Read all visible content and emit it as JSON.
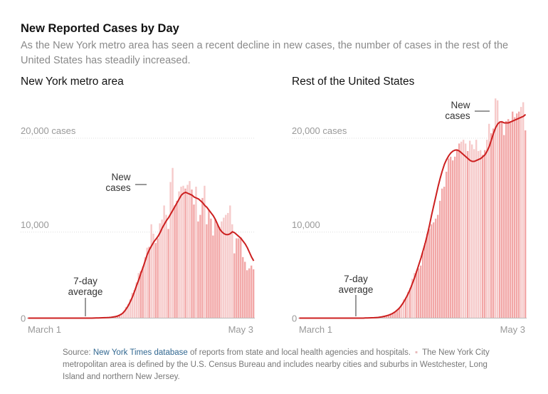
{
  "title": "New Reported Cases by Day",
  "subtitle": "As the New York metro area has seen a recent decline in new cases, the number of cases in the rest of the United States has steadily increased.",
  "colors": {
    "bar": "#f2a7a7",
    "bar_light": "#f6caca",
    "line": "#cc1f1f",
    "grid": "#dddddd",
    "axis_text": "#999999",
    "annot": "#333333"
  },
  "annotations": {
    "new_cases": [
      "New",
      "cases"
    ],
    "avg_label": [
      "7-day",
      "average"
    ]
  },
  "source": {
    "prefix": "Source: ",
    "link": "New York Times database",
    "rest": " of reports from state and local health agencies and hospitals.",
    "note": "The New York City metropolitan area is defined by the U.S. Census Bureau and includes nearby cities and suburbs in Westchester, Long Island and northern New Jersey."
  },
  "chart_data": [
    {
      "type": "bar",
      "title": "New York metro area",
      "xlabel": "",
      "ylabel": "",
      "ylim": [
        0,
        24000
      ],
      "y_ticks": [
        {
          "value": 0,
          "label": "0"
        },
        {
          "value": 10000,
          "label": "10,000"
        },
        {
          "value": 20000,
          "label": "20,000 cases"
        }
      ],
      "x_labels": [
        "March 1",
        "May 3"
      ],
      "start_date": "March 1",
      "series": [
        {
          "name": "New cases",
          "values": [
            0,
            0,
            0,
            0,
            0,
            0,
            0,
            0,
            0,
            0,
            0,
            0,
            0,
            0,
            0,
            0,
            0,
            0,
            0,
            0,
            0,
            0,
            0,
            0,
            0,
            0,
            0,
            0,
            0,
            0,
            0,
            5,
            10,
            10,
            15,
            30,
            40,
            50,
            60,
            80,
            100,
            150,
            200,
            300,
            500,
            800,
            1200,
            1500,
            2000,
            2700,
            3000,
            3800,
            4800,
            5000,
            5500,
            6500,
            7500,
            7600,
            10000,
            9000,
            8000,
            8500,
            10100,
            10500,
            12000,
            11000,
            9500,
            14500,
            16000,
            12000,
            12500,
            13500,
            14000,
            14100,
            13800,
            14200,
            14600,
            13700,
            12100,
            14000,
            10300,
            11000,
            12800,
            14100,
            10000,
            11500,
            10600,
            8800,
            10500,
            10000,
            9700,
            10300,
            10700,
            11000,
            11200,
            12000,
            10000,
            6900,
            8500,
            8500,
            8600,
            6500,
            6000,
            5100,
            5300,
            5600,
            5200
          ]
        },
        {
          "name": "7-day average",
          "values": [
            0,
            0,
            0,
            0,
            0,
            0,
            0,
            0,
            0,
            0,
            0,
            0,
            0,
            0,
            0,
            0,
            0,
            0,
            0,
            0,
            0,
            0,
            0,
            0,
            0,
            0,
            0,
            0,
            0,
            0,
            0,
            10,
            15,
            20,
            25,
            35,
            45,
            55,
            70,
            90,
            120,
            160,
            220,
            320,
            450,
            650,
            950,
            1300,
            1750,
            2250,
            2850,
            3500,
            4100,
            4800,
            5400,
            6100,
            6800,
            7300,
            7700,
            8100,
            8400,
            8700,
            9100,
            9600,
            10000,
            10400,
            10700,
            11100,
            11500,
            11900,
            12300,
            12700,
            13100,
            13300,
            13400,
            13300,
            13200,
            13100,
            12900,
            12800,
            12700,
            12500,
            12300,
            12000,
            11800,
            11500,
            11200,
            10900,
            10500,
            10000,
            9500,
            9200,
            9000,
            8900,
            8900,
            9000,
            9200,
            9100,
            8900,
            8700,
            8500,
            8200,
            7900,
            7500,
            7000,
            6500,
            6100
          ]
        }
      ]
    },
    {
      "type": "bar",
      "title": "Rest of the United States",
      "xlabel": "",
      "ylabel": "",
      "ylim": [
        0,
        24000
      ],
      "y_ticks": [
        {
          "value": 0,
          "label": "0"
        },
        {
          "value": 10000,
          "label": "10,000"
        },
        {
          "value": 20000,
          "label": "20,000 cases"
        }
      ],
      "x_labels": [
        "March 1",
        "May 3"
      ],
      "start_date": "March 1",
      "series": [
        {
          "name": "New cases",
          "values": [
            0,
            0,
            0,
            0,
            0,
            0,
            0,
            0,
            0,
            0,
            0,
            0,
            0,
            0,
            0,
            0,
            0,
            0,
            0,
            0,
            0,
            0,
            0,
            0,
            0,
            0,
            0,
            0,
            0,
            0,
            0,
            10,
            15,
            20,
            30,
            40,
            50,
            70,
            100,
            150,
            200,
            250,
            300,
            400,
            550,
            700,
            900,
            1100,
            1500,
            2000,
            2200,
            2800,
            3200,
            4200,
            4800,
            5000,
            5300,
            5600,
            7000,
            8000,
            9000,
            9500,
            10000,
            10200,
            10600,
            11000,
            12500,
            13800,
            14000,
            15600,
            17000,
            17200,
            16800,
            17200,
            18000,
            18600,
            18800,
            19000,
            18600,
            17800,
            18900,
            18500,
            18000,
            19000,
            17800,
            17900,
            17400,
            17900,
            19000,
            20700,
            19700,
            20200,
            23400,
            23200,
            20800,
            21000,
            19500,
            21000,
            21200,
            21000,
            22000,
            21400,
            21800,
            22000,
            22500,
            23000,
            20000
          ]
        },
        {
          "name": "7-day average",
          "values": [
            0,
            0,
            0,
            0,
            0,
            0,
            0,
            0,
            0,
            0,
            0,
            0,
            0,
            0,
            0,
            0,
            0,
            0,
            0,
            0,
            0,
            0,
            0,
            0,
            0,
            0,
            0,
            0,
            0,
            0,
            0,
            15,
            20,
            25,
            35,
            45,
            60,
            80,
            110,
            150,
            200,
            260,
            330,
            420,
            540,
            690,
            880,
            1100,
            1400,
            1750,
            2150,
            2600,
            3100,
            3700,
            4300,
            5000,
            5700,
            6400,
            7200,
            8000,
            8900,
            9900,
            11000,
            12000,
            13000,
            14000,
            14900,
            15700,
            16400,
            16900,
            17300,
            17600,
            17800,
            17900,
            17900,
            17800,
            17600,
            17400,
            17200,
            17000,
            16800,
            16700,
            16700,
            16800,
            16900,
            17000,
            17200,
            17400,
            17800,
            18300,
            19000,
            19700,
            20300,
            20700,
            20900,
            20900,
            20800,
            20800,
            20800,
            20900,
            21000,
            21100,
            21200,
            21300,
            21400,
            21500,
            21700
          ]
        }
      ]
    }
  ]
}
